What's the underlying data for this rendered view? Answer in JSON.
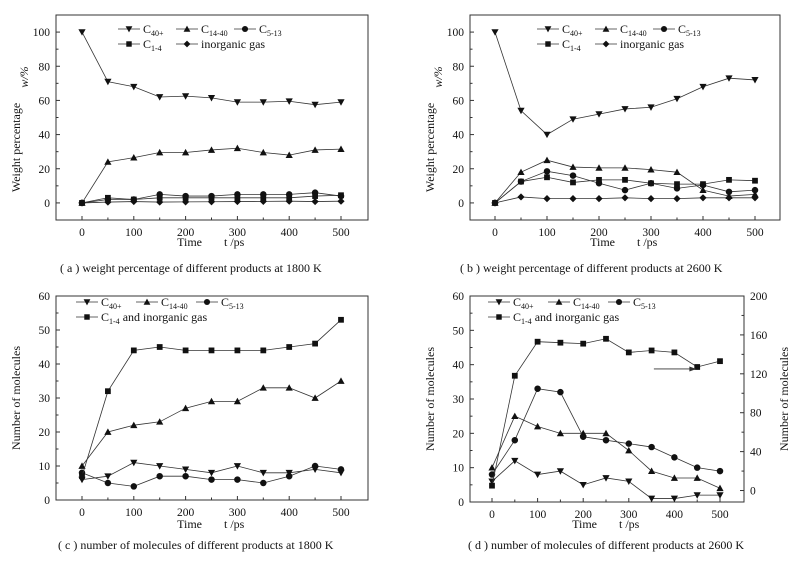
{
  "chart_data": [
    {
      "id": "a",
      "type": "line",
      "caption": "( a )  weight percentage of different products at 1800 K",
      "xlabel": "Time",
      "xunit": "t /ps",
      "ylabel": "Weight percentage",
      "yunit": "w/%",
      "xlim": [
        -30,
        550
      ],
      "ylim": [
        -10,
        110
      ],
      "xticks": [
        0,
        100,
        200,
        300,
        400,
        500
      ],
      "yticks": [
        0,
        20,
        40,
        60,
        80,
        100
      ],
      "grid": false,
      "legend_placement": "top-center",
      "x": [
        0,
        50,
        100,
        150,
        200,
        250,
        300,
        350,
        400,
        450,
        500
      ],
      "series": [
        {
          "name": "C40+",
          "base": "C",
          "sub": "40+",
          "marker": "triangle-down",
          "values": [
            100,
            71,
            68,
            62,
            62.5,
            61.5,
            59,
            59,
            59.5,
            57.5,
            59
          ]
        },
        {
          "name": "C14-40",
          "base": "C",
          "sub": "14-40",
          "marker": "triangle-up",
          "values": [
            0,
            24,
            26.5,
            29.5,
            29.5,
            31,
            32,
            29.5,
            28,
            31,
            31.5
          ]
        },
        {
          "name": "C5-13",
          "base": "C",
          "sub": "5-13",
          "marker": "circle",
          "values": [
            0,
            2,
            2,
            5,
            4,
            4,
            5,
            5,
            5,
            6,
            4
          ]
        },
        {
          "name": "C1-4",
          "base": "C",
          "sub": "1-4",
          "marker": "square",
          "values": [
            0,
            3,
            2,
            3,
            3,
            3,
            3,
            3,
            3,
            4,
            4.5
          ]
        },
        {
          "name": "inorganic gas",
          "base": "inorganic gas",
          "sub": "",
          "marker": "diamond",
          "values": [
            0,
            0.5,
            0.8,
            0.5,
            0.6,
            0.7,
            0.8,
            0.9,
            1,
            0.8,
            1
          ]
        }
      ]
    },
    {
      "id": "b",
      "type": "line",
      "caption": "( b )  weight percentage of different products at 2600 K",
      "xlabel": "Time",
      "xunit": "t /ps",
      "ylabel": "Weight percentage",
      "yunit": "w/%",
      "xlim": [
        -30,
        550
      ],
      "ylim": [
        -10,
        110
      ],
      "xticks": [
        0,
        100,
        200,
        300,
        400,
        500
      ],
      "yticks": [
        0,
        20,
        40,
        60,
        80,
        100
      ],
      "grid": false,
      "legend_placement": "top-center",
      "x": [
        0,
        50,
        100,
        150,
        200,
        250,
        300,
        350,
        400,
        450,
        500
      ],
      "series": [
        {
          "name": "C40+",
          "base": "C",
          "sub": "40+",
          "marker": "triangle-down",
          "values": [
            100,
            54,
            40,
            49,
            52,
            55,
            56,
            61,
            68,
            73,
            72
          ]
        },
        {
          "name": "C14-40",
          "base": "C",
          "sub": "14-40",
          "marker": "triangle-up",
          "values": [
            0,
            18,
            25,
            21,
            20.5,
            20.5,
            19.5,
            18,
            7.5,
            4,
            5
          ]
        },
        {
          "name": "C5-13",
          "base": "C",
          "sub": "5-13",
          "marker": "circle",
          "values": [
            0,
            12.5,
            18.5,
            16,
            11.5,
            7.5,
            11.5,
            8.5,
            10.5,
            6.5,
            7.5
          ]
        },
        {
          "name": "C1-4",
          "base": "C",
          "sub": "1-4",
          "marker": "square",
          "values": [
            0,
            12.5,
            15,
            12,
            13.5,
            13.5,
            11.5,
            11,
            11,
            13.5,
            13
          ]
        },
        {
          "name": "inorganic gas",
          "base": "inorganic gas",
          "sub": "",
          "marker": "diamond",
          "values": [
            0,
            3.5,
            2.5,
            2.5,
            2.5,
            3,
            2.5,
            2.5,
            3,
            3,
            3
          ]
        }
      ]
    },
    {
      "id": "c",
      "type": "line",
      "caption": "( c )  number of molecules of different products at 1800 K",
      "xlabel": "Time",
      "xunit": "t /ps",
      "ylabel": "Number of molecules",
      "yunit": "",
      "xlim": [
        -30,
        550
      ],
      "ylim": [
        0,
        60
      ],
      "xticks": [
        0,
        100,
        200,
        300,
        400,
        500
      ],
      "yticks": [
        0,
        10,
        20,
        30,
        40,
        50,
        60
      ],
      "grid": false,
      "legend_placement": "top-left",
      "x": [
        0,
        50,
        100,
        150,
        200,
        250,
        300,
        350,
        400,
        450,
        500
      ],
      "series": [
        {
          "name": "C40+",
          "base": "C",
          "sub": "40+",
          "marker": "triangle-down",
          "values": [
            6,
            7,
            11,
            10,
            9,
            8,
            10,
            8,
            8,
            9,
            8
          ]
        },
        {
          "name": "C14-40",
          "base": "C",
          "sub": "14-40",
          "marker": "triangle-up",
          "values": [
            10,
            20,
            22,
            23,
            27,
            29,
            29,
            33,
            33,
            30,
            35
          ]
        },
        {
          "name": "C5-13",
          "base": "C",
          "sub": "5-13",
          "marker": "circle",
          "values": [
            8,
            5,
            4,
            7,
            7,
            6,
            6,
            5,
            7,
            10,
            9
          ]
        },
        {
          "name": "C1-4 and inorganic gas",
          "base": "C",
          "sub": "1-4",
          "suffix": " and inorganic gas",
          "marker": "square",
          "values": [
            7,
            32,
            44,
            45,
            44,
            44,
            44,
            44,
            45,
            46,
            53
          ]
        }
      ]
    },
    {
      "id": "d",
      "type": "line",
      "caption": "( d )  number of molecules of different products at 2600 K",
      "xlabel": "Time",
      "xunit": "t /ps",
      "ylabel": "Number of molecules",
      "yunit": "",
      "y2label": "Number of molecules",
      "xlim": [
        -30,
        550
      ],
      "ylim": [
        0,
        60
      ],
      "y2lim": [
        -11.8,
        200
      ],
      "xticks": [
        0,
        100,
        200,
        300,
        400,
        500
      ],
      "yticks": [
        0,
        10,
        20,
        30,
        40,
        50,
        60
      ],
      "y2ticks": [
        0,
        40,
        80,
        120,
        160,
        200
      ],
      "grid": false,
      "legend_placement": "top-left",
      "annotation": "arrow pointing to right axis for C1-4 and inorganic gas series",
      "x": [
        0,
        50,
        100,
        150,
        200,
        250,
        300,
        350,
        400,
        450,
        500
      ],
      "series": [
        {
          "name": "C40+",
          "base": "C",
          "sub": "40+",
          "marker": "triangle-down",
          "axis": "left",
          "values": [
            6,
            12,
            8,
            9,
            5,
            7,
            6,
            1,
            1,
            2,
            2
          ]
        },
        {
          "name": "C14-40",
          "base": "C",
          "sub": "14-40",
          "marker": "triangle-up",
          "axis": "left",
          "values": [
            10,
            25,
            22,
            20,
            20,
            20,
            15,
            9,
            7,
            7,
            4
          ]
        },
        {
          "name": "C5-13",
          "base": "C",
          "sub": "5-13",
          "marker": "circle",
          "axis": "left",
          "values": [
            8,
            18,
            33,
            32,
            19,
            18,
            17,
            16,
            13,
            10,
            9
          ]
        },
        {
          "name": "C1-4 and inorganic gas",
          "base": "C",
          "sub": "1-4",
          "suffix": " and inorganic gas",
          "marker": "square",
          "axis": "right",
          "values": [
            5,
            118,
            153,
            152,
            151,
            156,
            142,
            144,
            142,
            127,
            133
          ]
        }
      ]
    }
  ]
}
